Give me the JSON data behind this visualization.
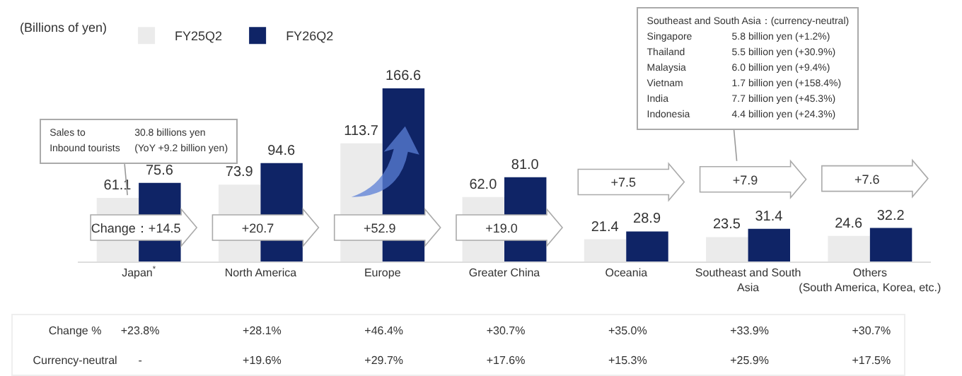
{
  "chart_data": [
    {
      "type": "bar",
      "categories": [
        "Japan$^{*}$",
        "North America",
        "Europe",
        "Greater China",
        "Oceania",
        "Southeast and South\nAsia",
        "Others\n(South America, Korea, etc.)"
      ],
      "series": [
        {
          "name": "FY25Q2",
          "color": "#ebebeb",
          "values": [
            61.1,
            73.9,
            113.7,
            62.0,
            21.4,
            23.5,
            24.6
          ],
          "value_labels": [
            "61.1",
            "73.9",
            "113.7",
            "62.0",
            "21.4",
            "23.5",
            "24.6"
          ]
        },
        {
          "name": "FY26Q2",
          "color": "#0f2466",
          "values": [
            75.6,
            94.6,
            166.6,
            81.0,
            28.9,
            31.4,
            32.2
          ],
          "value_labels": [
            "75.6",
            "94.6",
            "166.6",
            "81.0",
            "28.9",
            "31.4",
            "32.2"
          ]
        }
      ],
      "grid": false,
      "tick_labels": "x",
      "legend": "top left",
      "legend_title": "(Billions of yen)",
      "annotations": [
        "Sales to\t30.8 billions yen\nInbound tourists\t(YoY +9.2 billion yen)",
        "Southeast and South Asia：(currency-neutral)\nSingapore\t5.8 billion yen (+1.2%)\nThailand\t5.5 billion yen (+30.9%)\nMalaysia\t6.0 billion yen (+9.4%)\nVietnam\t1.7 billion yen (+158.4%)\nIndia\t7.7 billion yen (+45.3%)\nIndonesia\t4.4 billion yen (+24.3%)",
        "Change：+14.5",
        "+20.7",
        "+52.9",
        "+19.0",
        "+7.5",
        "+7.9",
        "+7.6"
      ]
    },
    {
      "type": "other",
      "categories": [
        null,
        null,
        null,
        null,
        null,
        null,
        null
      ],
      "y_categories": [
        "Change %",
        "Currency-neutral"
      ],
      "cell_labels": [
        [
          "+23.8%",
          "+28.1%",
          "+46.4%",
          "+30.7%",
          "+35.0%",
          "+33.9%",
          "+30.7%"
        ],
        [
          "-",
          "+19.6%",
          "+29.7%",
          "+17.6%",
          "+15.3%",
          "+25.9%",
          "+17.5%"
        ]
      ]
    }
  ]
}
